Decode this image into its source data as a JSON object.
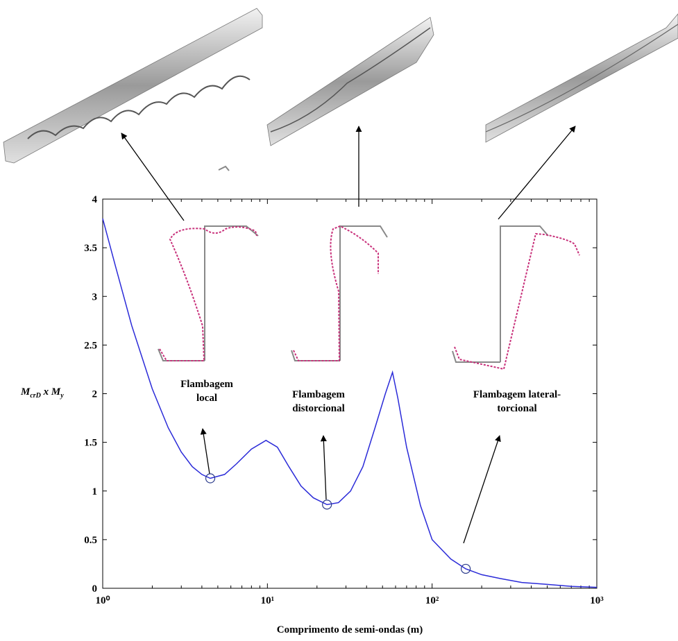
{
  "chart_data": {
    "type": "line",
    "xscale": "log",
    "x": [
      1,
      1.2,
      1.5,
      2,
      2.5,
      3,
      3.5,
      4,
      4.5,
      5.5,
      6.5,
      8,
      9.8,
      11.5,
      13.5,
      16,
      19,
      23,
      27,
      32,
      38,
      45,
      52,
      57.5,
      62,
      70,
      85,
      100,
      130,
      160,
      200,
      260,
      350,
      500,
      700,
      1000
    ],
    "values": [
      3.8,
      3.3,
      2.7,
      2.05,
      1.65,
      1.4,
      1.25,
      1.17,
      1.13,
      1.17,
      1.28,
      1.43,
      1.52,
      1.45,
      1.25,
      1.05,
      0.93,
      0.86,
      0.88,
      1.0,
      1.25,
      1.65,
      2.0,
      2.22,
      1.95,
      1.45,
      0.85,
      0.5,
      0.3,
      0.2,
      0.14,
      0.1,
      0.06,
      0.04,
      0.02,
      0.01
    ],
    "color": "#2a2ad8",
    "points": {
      "x": [
        4.5,
        23,
        160
      ],
      "y": [
        1.13,
        0.86,
        0.2
      ]
    },
    "xlim": [
      1,
      1000
    ],
    "xticks": [
      {
        "value": 1,
        "label": "10⁰"
      },
      {
        "value": 10,
        "label": "10¹"
      },
      {
        "value": 100,
        "label": "10²"
      },
      {
        "value": 1000,
        "label": "10³"
      }
    ],
    "ylim": [
      0,
      4
    ],
    "yticks": [
      0,
      0.5,
      1,
      1.5,
      2,
      2.5,
      3,
      3.5,
      4
    ],
    "x_label": "Comprimento de semi-ondas (m)",
    "y_label": [
      "M",
      "crD",
      " x M",
      "y"
    ],
    "annotations": [
      [
        "Flambagem",
        "local"
      ],
      [
        "Flambagem",
        "distorcional"
      ],
      [
        "Flambagem lateral-",
        "torcional"
      ]
    ]
  }
}
